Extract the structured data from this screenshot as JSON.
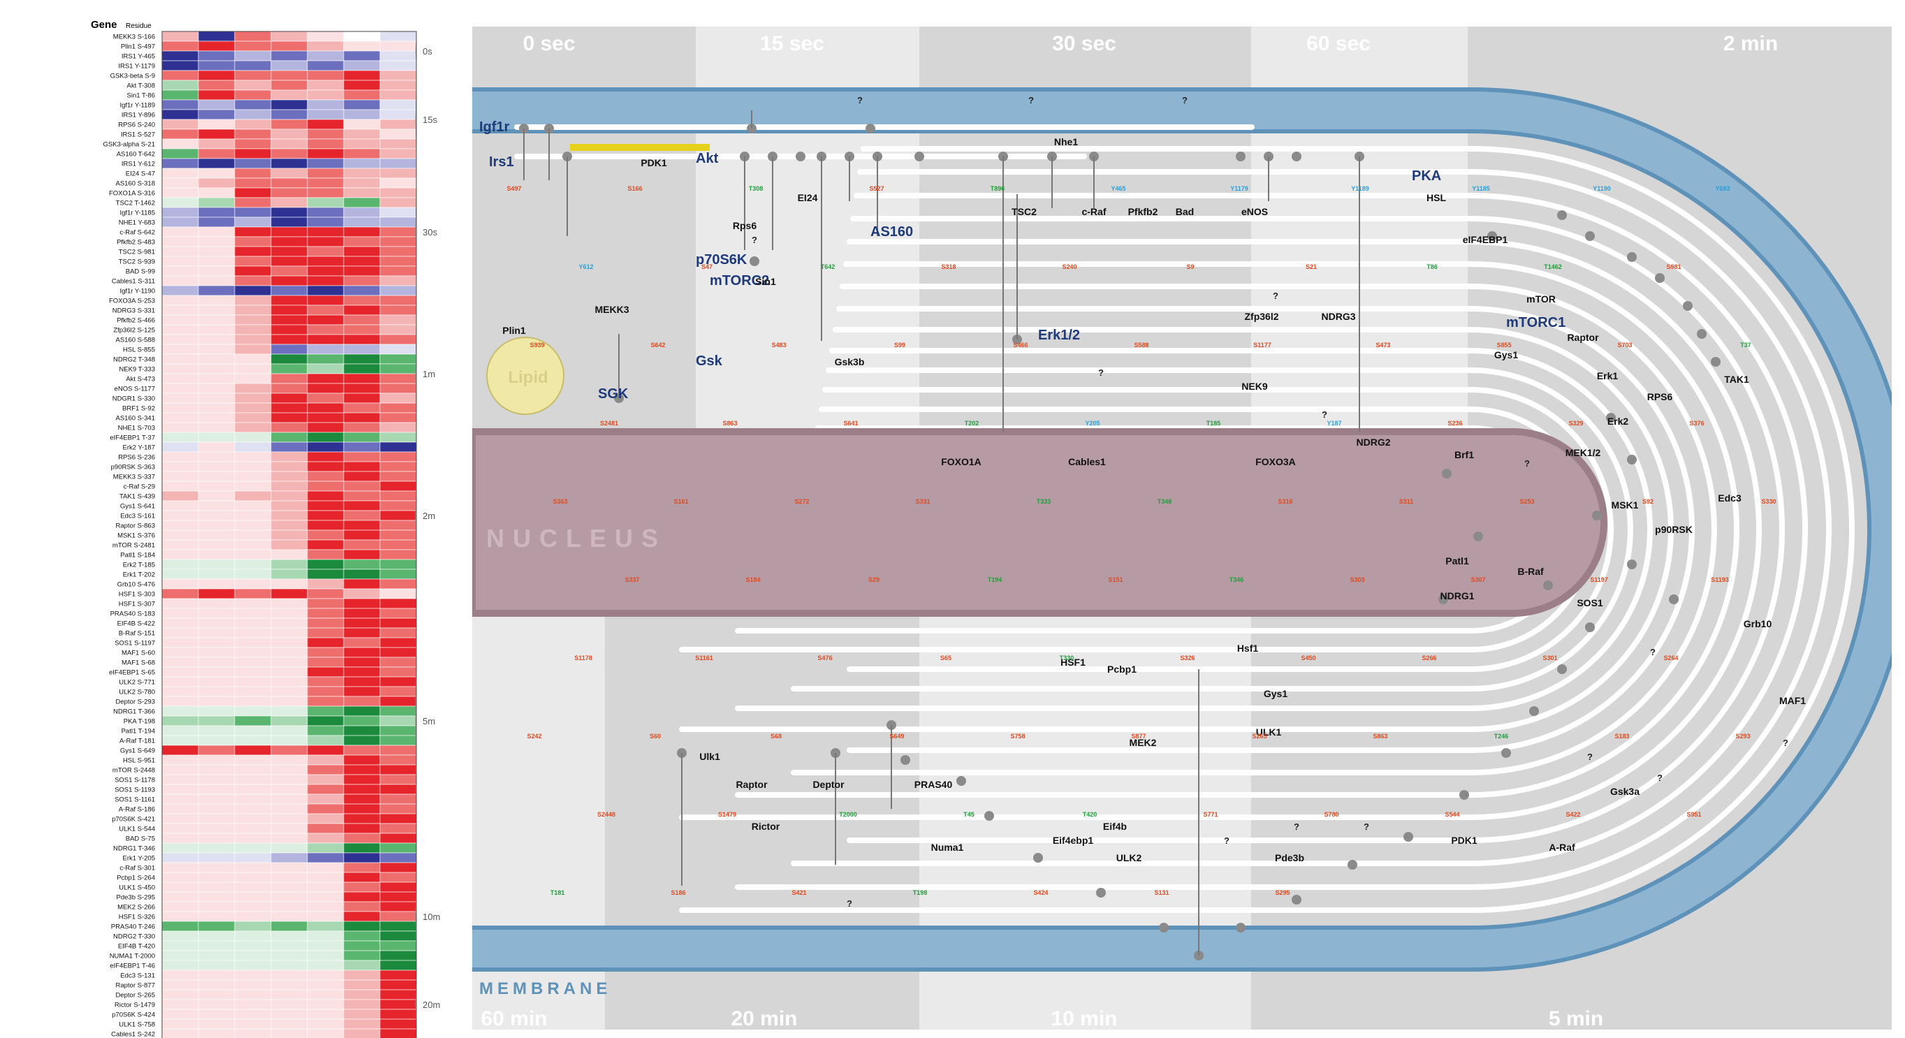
{
  "heatmap": {
    "header_gene": "Gene",
    "header_residue": "Residue",
    "colors": {
      "up": "#e5242b",
      "down": "#2e3192",
      "green": "#1b8a3c",
      "white": "#ffffff"
    },
    "groups": [
      {
        "label": "0s",
        "rows": [
          [
            "MEKK3",
            "S-166",
            "S-",
            "[2,-4,3,2,1,0,-1]"
          ],
          [
            "Plin1",
            "S-497",
            "S-",
            "[3,4,3,3,2,1,1]"
          ],
          [
            "IRS1",
            "Y-465",
            "Y-",
            "[-4,-3,-2,-3,-2,-3,-1]"
          ],
          [
            "IRS1",
            "Y-1179",
            "Y-",
            "[-4,-3,-3,-2,-3,-2,-1]"
          ]
        ]
      },
      {
        "label": "15s",
        "rows": [
          [
            "GSK3-beta",
            "S-9",
            "S-",
            "[3,4,3,3,3,4,2]"
          ],
          [
            "Akt",
            "T-308",
            "T-",
            "[-2,3,2,3,2,4,2]"
          ],
          [
            "Sin1",
            "T-86",
            "T-",
            "[-3,4,3,2,2,3,2]"
          ],
          [
            "Igf1r",
            "Y-1189",
            "Y-",
            "[-3,-2,-3,-4,-2,-3,-1]"
          ],
          [
            "IRS1",
            "Y-896",
            "Y-",
            "[-4,-3,-2,-3,-2,-2,-1]"
          ],
          [
            "RPS6",
            "S-240",
            "S-",
            "[2,1,2,3,4,1,2]"
          ],
          [
            "IRS1",
            "S-527",
            "S-",
            "[3,4,3,2,3,2,1]"
          ],
          [
            "GSK3-alpha",
            "S-21",
            "S-",
            "[1,2,3,2,3,2,2]"
          ],
          [
            "AS160",
            "T-642",
            "T-",
            "[-3,3,4,3,4,3,2]"
          ],
          [
            "IRS1",
            "Y-612",
            "Y-",
            "[-3,-4,-3,-4,-3,-2,-2]"
          ]
        ]
      },
      {
        "label": "30s",
        "rows": [
          [
            "EI24",
            "S-47",
            "S-",
            "[1,1,3,2,3,2,2]"
          ],
          [
            "AS160",
            "S-318",
            "S-",
            "[1,2,3,3,3,2,1]"
          ],
          [
            "FOXO1A",
            "S-316",
            "S-",
            "[1,1,4,3,3,2,2]"
          ],
          [
            "TSC2",
            "T-1462",
            "T-",
            "[-1,-2,3,2,-2,-3,2]"
          ],
          [
            "Igf1r",
            "Y-1185",
            "Y-",
            "[-2,-3,-3,-4,-3,-2,-1]"
          ],
          [
            "NHE1",
            "Y-683",
            "Y-",
            "[-2,-3,-2,-4,-3,-2,-2]"
          ],
          [
            "c-Raf",
            "S-642",
            "S-",
            "[1,1,4,4,4,4,3]"
          ],
          [
            "Pfkfb2",
            "S-483",
            "S-",
            "[1,1,3,4,4,3,3]"
          ],
          [
            "TSC2",
            "S-981",
            "S-",
            "[1,1,4,4,3,4,3]"
          ],
          [
            "TSC2",
            "S-939",
            "S-",
            "[1,1,3,4,4,4,3]"
          ],
          [
            "BAD",
            "S-99",
            "S-",
            "[1,1,4,3,4,4,3]"
          ],
          [
            "Cables1",
            "S-311",
            "S-",
            "[1,1,3,4,4,3,2]"
          ],
          [
            "Igf1r",
            "Y-1190",
            "Y-",
            "[-2,-3,-4,-3,-4,-3,-2]"
          ]
        ]
      },
      {
        "label": "1m",
        "rows": [
          [
            "FOXO3A",
            "S-253",
            "S-",
            "[1,1,2,4,4,3,3]"
          ],
          [
            "NDRG3",
            "S-331",
            "S-",
            "[1,1,2,4,3,4,3]"
          ],
          [
            "Pfkfb2",
            "S-466",
            "S-",
            "[1,1,2,4,4,3,2]"
          ],
          [
            "Zfp36l2",
            "S-125",
            "S-",
            "[1,1,2,4,3,3,2]"
          ],
          [
            "AS160",
            "S-588",
            "S-",
            "[1,1,2,4,4,4,3]"
          ],
          [
            "HSL",
            "S-855",
            "S-",
            "[1,1,2,-3,-2,-2,-1]"
          ],
          [
            "NDRG2",
            "T-348",
            "T-",
            "[1,1,1,-4,-3,-4,-3]"
          ],
          [
            "NEK9",
            "T-333",
            "T-",
            "[1,1,1,-3,-2,-4,-3]"
          ],
          [
            "Akt",
            "S-473",
            "S-",
            "[1,1,1,3,4,4,3]"
          ],
          [
            "eNOS",
            "S-1177",
            "S-",
            "[1,1,2,3,4,4,3]"
          ],
          [
            "NDGR1",
            "S-330",
            "S-",
            "[1,1,2,4,3,4,2]"
          ],
          [
            "BRF1",
            "S-92",
            "S-",
            "[1,1,2,4,4,3,3]"
          ],
          [
            "AS160",
            "S-341",
            "S-",
            "[1,1,2,4,4,4,3]"
          ],
          [
            "NHE1",
            "S-703",
            "S-",
            "[1,1,2,3,4,3,2]"
          ],
          [
            "eIF4EBP1",
            "T-37",
            "T-",
            "[-1,-1,-1,-3,-4,-3,-2]"
          ],
          [
            "Erk2",
            "Y-187",
            "Y-",
            "[-1,1,-1,-3,-4,-3,-4]"
          ]
        ]
      },
      {
        "label": "2m",
        "rows": [
          [
            "RPS6",
            "S-236",
            "S-",
            "[1,1,1,2,4,3,3]"
          ],
          [
            "p90RSK",
            "S-363",
            "S-",
            "[1,1,1,2,4,4,3]"
          ],
          [
            "MEKK3",
            "S-337",
            "S-",
            "[1,1,1,2,3,4,3]"
          ],
          [
            "c-Raf",
            "S-29",
            "S-",
            "[1,1,1,2,3,3,4]"
          ],
          [
            "TAK1",
            "S-439",
            "S-",
            "[2,1,2,2,4,3,3]"
          ],
          [
            "Gys1",
            "S-641",
            "S-",
            "[1,1,1,2,4,4,3]"
          ],
          [
            "Edc3",
            "S-161",
            "S-",
            "[1,1,1,2,4,3,4]"
          ],
          [
            "Raptor",
            "S-863",
            "S-",
            "[1,1,1,2,4,4,3]"
          ],
          [
            "MSK1",
            "S-376",
            "S-",
            "[1,1,1,2,3,4,3]"
          ],
          [
            "mTOR",
            "S-2481",
            "S-",
            "[1,1,1,2,4,3,3]"
          ],
          [
            "Patl1",
            "S-184",
            "S-",
            "[1,1,1,1,3,4,3]"
          ],
          [
            "Erk2",
            "T-185",
            "T-",
            "[-1,-1,-1,-2,-4,-3,-3]"
          ],
          [
            "Erk1",
            "T-202",
            "T-",
            "[-1,-1,-1,-2,-4,-4,-3]"
          ]
        ]
      },
      {
        "label": "5m",
        "rows": [
          [
            "Grb10",
            "S-476",
            "S-",
            "[1,1,1,1,2,4,3]"
          ],
          [
            "HSF1",
            "S-303",
            "S-",
            "[3,4,3,4,3,2,1]"
          ],
          [
            "HSF1",
            "S-307",
            "S-",
            "[1,1,1,1,3,4,4]"
          ],
          [
            "PRAS40",
            "S-183",
            "S-",
            "[1,1,1,1,3,4,3]"
          ],
          [
            "EIF4B",
            "S-422",
            "S-",
            "[1,1,1,1,3,4,4]"
          ],
          [
            "B-Raf",
            "S-151",
            "S-",
            "[1,1,1,1,3,4,3]"
          ],
          [
            "SOS1",
            "S-1197",
            "S-",
            "[1,1,1,1,4,3,4]"
          ],
          [
            "MAF1",
            "S-60",
            "S-",
            "[1,1,1,1,3,4,4]"
          ],
          [
            "MAF1",
            "S-68",
            "S-",
            "[1,1,1,1,3,4,3]"
          ],
          [
            "eIF4EBP1",
            "S-65",
            "S-",
            "[1,1,1,1,4,4,3]"
          ],
          [
            "ULK2",
            "S-771",
            "S-",
            "[1,1,1,1,3,4,4]"
          ],
          [
            "ULK2",
            "S-780",
            "S-",
            "[1,1,1,1,3,4,3]"
          ],
          [
            "Deptor",
            "S-293",
            "S-",
            "[1,1,1,1,3,3,4]"
          ],
          [
            "NDRG1",
            "T-366",
            "T-",
            "[-1,-1,-1,-1,-3,-4,-3]"
          ],
          [
            "PKA",
            "T-198",
            "T-",
            "[-2,-2,-3,-2,-4,-3,-2]"
          ],
          [
            "Patl1",
            "T-194",
            "T-",
            "[-1,-1,-1,-1,-3,-4,-3]"
          ],
          [
            "A-Raf",
            "T-181",
            "T-",
            "[-1,-1,-1,-1,-2,-4,-3]"
          ],
          [
            "Gys1",
            "S-649",
            "S-",
            "[4,3,4,3,4,3,3]"
          ],
          [
            "HSL",
            "S-951",
            "S-",
            "[1,1,1,1,2,4,3]"
          ],
          [
            "mTOR",
            "S-2448",
            "S-",
            "[1,1,1,1,3,4,4]"
          ],
          [
            "SOS1",
            "S-1178",
            "S-",
            "[1,1,1,1,2,4,3]"
          ],
          [
            "SOS1",
            "S-1193",
            "S-",
            "[1,1,1,1,3,4,4]"
          ],
          [
            "SOS1",
            "S-1161",
            "S-",
            "[1,1,1,1,2,4,3]"
          ],
          [
            "A-Raf",
            "S-186",
            "S-",
            "[1,1,1,1,3,4,3]"
          ],
          [
            "p70S6K",
            "S-421",
            "S-",
            "[1,1,1,1,2,4,4]"
          ],
          [
            "ULK1",
            "S-544",
            "S-",
            "[1,1,1,1,3,4,3]"
          ],
          [
            "BAD",
            "S-75",
            "S-",
            "[1,1,1,1,2,3,4]"
          ],
          [
            "NDRG1",
            "T-346",
            "T-",
            "[-1,-1,-1,-1,-2,-4,-3]"
          ],
          [
            "Erk1",
            "Y-205",
            "Y-",
            "[-1,-1,-1,-2,-3,-4,-3]"
          ]
        ]
      },
      {
        "label": "10m",
        "rows": [
          [
            "c-Raf",
            "S-301",
            "S-",
            "[1,1,1,1,1,3,4]"
          ],
          [
            "Pcbp1",
            "S-264",
            "S-",
            "[1,1,1,1,1,4,3]"
          ],
          [
            "ULK1",
            "S-450",
            "S-",
            "[1,1,1,1,1,3,4]"
          ],
          [
            "Pde3b",
            "S-295",
            "S-",
            "[1,1,1,1,1,4,4]"
          ],
          [
            "MEK2",
            "S-266",
            "S-",
            "[1,1,1,1,1,3,4]"
          ],
          [
            "HSF1",
            "S-326",
            "S-",
            "[1,1,1,1,1,4,3]"
          ],
          [
            "PRAS40",
            "T-246",
            "T-",
            "[-3,-3,-2,-3,-2,-4,-4]"
          ],
          [
            "NDRG2",
            "T-330",
            "T-",
            "[-1,-1,-1,-1,-1,-3,-4]"
          ],
          [
            "EIF4B",
            "T-420",
            "T-",
            "[-1,-1,-1,-1,-1,-3,-3]"
          ],
          [
            "NUMA1",
            "T-2000",
            "T-",
            "[-1,-1,-1,-1,-1,-3,-4]"
          ],
          [
            "eIF4EBP1",
            "T-46",
            "T-",
            "[-1,-1,-1,-1,-1,-2,-4]"
          ]
        ]
      },
      {
        "label": "20m",
        "rows": [
          [
            "Edc3",
            "S-131",
            "S-",
            "[1,1,1,1,1,2,4]"
          ],
          [
            "Raptor",
            "S-877",
            "S-",
            "[1,1,1,1,1,2,4]"
          ],
          [
            "Deptor",
            "S-265",
            "S-",
            "[1,1,1,1,1,2,4]"
          ],
          [
            "Rictor",
            "S-1479",
            "S-",
            "[1,1,1,1,1,2,4]"
          ],
          [
            "p70S6K",
            "S-424",
            "S-",
            "[1,1,1,1,1,2,4]"
          ],
          [
            "ULK1",
            "S-758",
            "S-",
            "[1,1,1,1,1,2,4]"
          ],
          [
            "Cables1",
            "S-242",
            "S-",
            "[1,1,1,1,1,2,4]"
          ]
        ]
      }
    ]
  },
  "pathway": {
    "time_labels_top": [
      "0 sec",
      "15 sec",
      "30 sec",
      "60 sec",
      "2 min"
    ],
    "time_labels_bottom": [
      "60 min",
      "20 min",
      "10 min",
      "5 min"
    ],
    "region_labels": {
      "nucleus": "NUCLEUS",
      "membrane": "MEMBRANE",
      "lipid": "Lipid"
    },
    "colors": {
      "membrane": "#8db5d1",
      "membrane_edge": "#5f92b9",
      "nucleus": "#b79ba4",
      "nucleus_edge": "#9c7e88",
      "lane": "#ffffff",
      "node": "#8a8a8a",
      "red": "#e04a1f",
      "green": "#1f9e3a",
      "blue": "#2aa0d6",
      "navy": "#1f3a7a",
      "akt_bar": "#e6d21c"
    },
    "kinase_labels": [
      "Igf1r",
      "Irs1",
      "Akt",
      "PKA",
      "AS160",
      "p70S6K",
      "mTORC2",
      "Erk1/2",
      "Gsk",
      "SGK",
      "mTORC1"
    ],
    "substrate_labels": [
      "Plin1",
      "MEKK3",
      "PDK1",
      "Rps6",
      "Sin1",
      "EI24",
      "Nhe1",
      "TSC2",
      "c-Raf",
      "Pfkfb2",
      "Bad",
      "eNOS",
      "HSL",
      "eIF4EBP1",
      "mTOR",
      "Raptor",
      "Gys1",
      "Erk1",
      "Erk2",
      "MEK1/2",
      "RPS6",
      "TAK1",
      "MSK1",
      "p90RSK",
      "Edc3",
      "Zfp36l2",
      "NDRG3",
      "NEK9",
      "NDRG2",
      "FOXO1A",
      "Cables1",
      "FOXO3A",
      "Brf1",
      "Patl1",
      "NDRG1",
      "B-Raf",
      "SOS1",
      "Grb10",
      "MAF1",
      "Hsf1",
      "HSF1",
      "Pcbp1",
      "ULK1",
      "MEK2",
      "Gys1",
      "Ulk1",
      "Raptor",
      "Deptor",
      "Rictor",
      "PRAS40",
      "Numa1",
      "Eif4ebp1",
      "Eif4b",
      "ULK2",
      "Pde3b",
      "PDK1",
      "A-Raf",
      "Gsk3a",
      "Gsk3b"
    ],
    "site_labels": [
      "S497",
      "S166",
      "T308",
      "S527",
      "T896",
      "Y465",
      "Y1179",
      "Y1189",
      "Y1185",
      "Y1190",
      "Y683",
      "Y612",
      "S47",
      "T642",
      "S318",
      "S240",
      "S9",
      "S21",
      "T86",
      "T1462",
      "S981",
      "S939",
      "S642",
      "S483",
      "S99",
      "S466",
      "S588",
      "S1177",
      "S473",
      "S855",
      "S703",
      "T37",
      "S2481",
      "S863",
      "S641",
      "T202",
      "Y205",
      "T185",
      "Y187",
      "S236",
      "S329",
      "S376",
      "S363",
      "S161",
      "S272",
      "S331",
      "T333",
      "T348",
      "S316",
      "S311",
      "S253",
      "S92",
      "S330",
      "S337",
      "S184",
      "S29",
      "T194",
      "S151",
      "T346",
      "S303",
      "S307",
      "S1197",
      "S1193",
      "S1178",
      "S1161",
      "S476",
      "S65",
      "T330",
      "S326",
      "S450",
      "S266",
      "S301",
      "S264",
      "S242",
      "S60",
      "S68",
      "S649",
      "S758",
      "S877",
      "S265",
      "S863",
      "T246",
      "S183",
      "S293",
      "S2448",
      "S1479",
      "T2000",
      "T45",
      "T420",
      "S771",
      "S780",
      "S544",
      "S422",
      "S951",
      "T181",
      "S186",
      "S421",
      "T198",
      "S424",
      "S131",
      "S295"
    ],
    "unknown_mark": "?"
  }
}
